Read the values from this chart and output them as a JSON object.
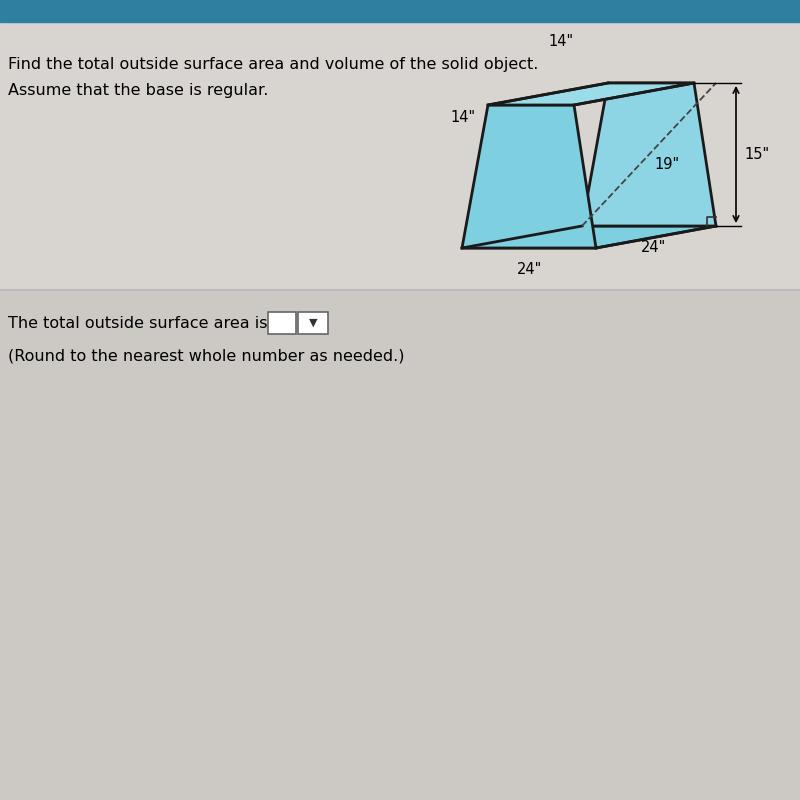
{
  "bg_color_page": "#ccc8c4",
  "bg_color_upper": "#d0ccc8",
  "bg_color_lower": "#ccc8c4",
  "title_line1": "Find the total outside surface area and volume of the solid object.",
  "title_line2": "Assume that the base is regular.",
  "bottom_text1": "The total outside surface area is",
  "bottom_text2": "(Round to the nearest whole number as needed.)",
  "dim_top_horiz": "14\"",
  "dim_top_depth": "14\"",
  "dim_slant": "19\"",
  "dim_height": "15\"",
  "dim_bottom_front": "24\"",
  "dim_bottom_back": "24\"",
  "shape_fill_front": "#7ecfe0",
  "shape_fill_top": "#9adce8",
  "shape_fill_right": "#8dd5e4",
  "shape_outline": "#1a1a1a",
  "header_color": "#2e7fa0",
  "separator_color": "#bbbbbb",
  "title_fontsize": 11.5,
  "dim_fontsize": 10.5
}
